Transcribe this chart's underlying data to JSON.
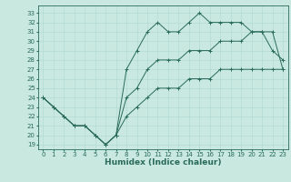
{
  "xlabel": "Humidex (Indice chaleur)",
  "bg_color": "#c8e8e0",
  "line_color": "#2a6b5a",
  "grid_color": "#b0d8d0",
  "x": [
    0,
    1,
    2,
    3,
    4,
    5,
    6,
    7,
    8,
    9,
    10,
    11,
    12,
    13,
    14,
    15,
    16,
    17,
    18,
    19,
    20,
    21,
    22,
    23
  ],
  "y_max": [
    24,
    23,
    22,
    21,
    21,
    20,
    19,
    20,
    27,
    29,
    31,
    32,
    31,
    31,
    32,
    33,
    32,
    32,
    32,
    32,
    31,
    31,
    29,
    28
  ],
  "y_mean": [
    24,
    23,
    22,
    21,
    21,
    20,
    19,
    20,
    24,
    25,
    27,
    28,
    28,
    28,
    29,
    29,
    29,
    30,
    30,
    30,
    31,
    31,
    31,
    27
  ],
  "y_min": [
    24,
    23,
    22,
    21,
    21,
    20,
    19,
    20,
    22,
    23,
    24,
    25,
    25,
    25,
    26,
    26,
    26,
    27,
    27,
    27,
    27,
    27,
    27,
    27
  ],
  "xlim": [
    -0.5,
    23.5
  ],
  "ylim": [
    18.5,
    33.8
  ],
  "xticks": [
    0,
    1,
    2,
    3,
    4,
    5,
    6,
    7,
    8,
    9,
    10,
    11,
    12,
    13,
    14,
    15,
    16,
    17,
    18,
    19,
    20,
    21,
    22,
    23
  ],
  "yticks": [
    19,
    20,
    21,
    22,
    23,
    24,
    25,
    26,
    27,
    28,
    29,
    30,
    31,
    32,
    33
  ],
  "tick_fontsize": 5,
  "label_fontsize": 6.5
}
